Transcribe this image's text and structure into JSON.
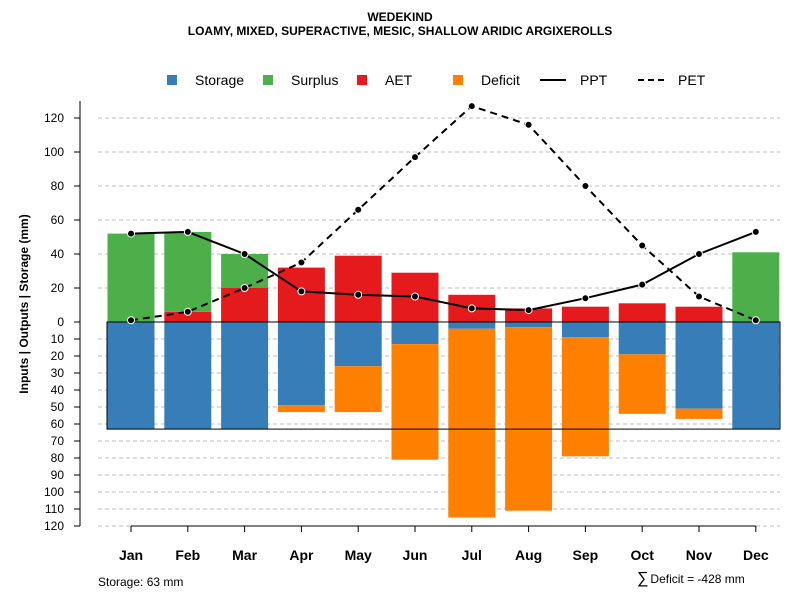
{
  "titles": {
    "line1": "WEDEKIND",
    "line2": "LOAMY, MIXED, SUPERACTIVE, MESIC, SHALLOW ARIDIC ARGIXEROLLS"
  },
  "legend": {
    "storage": "Storage",
    "surplus": "Surplus",
    "aet": "AET",
    "deficit": "Deficit",
    "ppt": "PPT",
    "pet": "PET"
  },
  "colors": {
    "storage": "#377eb8",
    "surplus": "#4daf4a",
    "aet": "#e41a1c",
    "deficit": "#ff7f00",
    "lines": "#000000",
    "grid": "#bdbdbd"
  },
  "footer": {
    "storage_note": "Storage: 63 mm",
    "sigma": "∑",
    "deficit_note": "Deficit = -428 mm"
  },
  "chart_data": {
    "type": "bar",
    "title": "WEDEKIND",
    "subtitle": "LOAMY, MIXED, SUPERACTIVE, MESIC, SHALLOW ARIDIC ARGIXEROLLS",
    "xlabel": "",
    "ylabel": "Inputs | Outputs | Storage    (mm)",
    "categories": [
      "Jan",
      "Feb",
      "Mar",
      "Apr",
      "May",
      "Jun",
      "Jul",
      "Aug",
      "Sep",
      "Oct",
      "Nov",
      "Dec"
    ],
    "y_ticks_upper": [
      0,
      20,
      40,
      60,
      80,
      100,
      120
    ],
    "y_ticks_lower": [
      10,
      20,
      30,
      40,
      50,
      60,
      70,
      80,
      90,
      100,
      110,
      120
    ],
    "ylim_upper": [
      0,
      130
    ],
    "ylim_lower": [
      0,
      120
    ],
    "storage_capacity": 63,
    "upper_bars": {
      "aet": [
        0,
        6,
        20,
        32,
        39,
        29,
        16,
        8,
        9,
        11,
        9,
        0
      ],
      "surplus": [
        52,
        47,
        20,
        0,
        0,
        0,
        0,
        0,
        0,
        0,
        0,
        41
      ]
    },
    "lower_bars": {
      "storage": [
        63,
        63,
        63,
        49,
        26,
        13,
        4,
        3,
        9,
        19,
        51,
        63
      ],
      "deficit": [
        0,
        0,
        0,
        4,
        27,
        68,
        111,
        108,
        70,
        35,
        6,
        0
      ]
    },
    "series": [
      {
        "name": "PPT",
        "style": "solid",
        "values": [
          52,
          53,
          40,
          18,
          16,
          15,
          8,
          7,
          14,
          22,
          40,
          53
        ]
      },
      {
        "name": "PET",
        "style": "dashed",
        "values": [
          1,
          6,
          20,
          35,
          66,
          97,
          127,
          116,
          80,
          45,
          15,
          1
        ]
      }
    ],
    "total_deficit": -428
  }
}
